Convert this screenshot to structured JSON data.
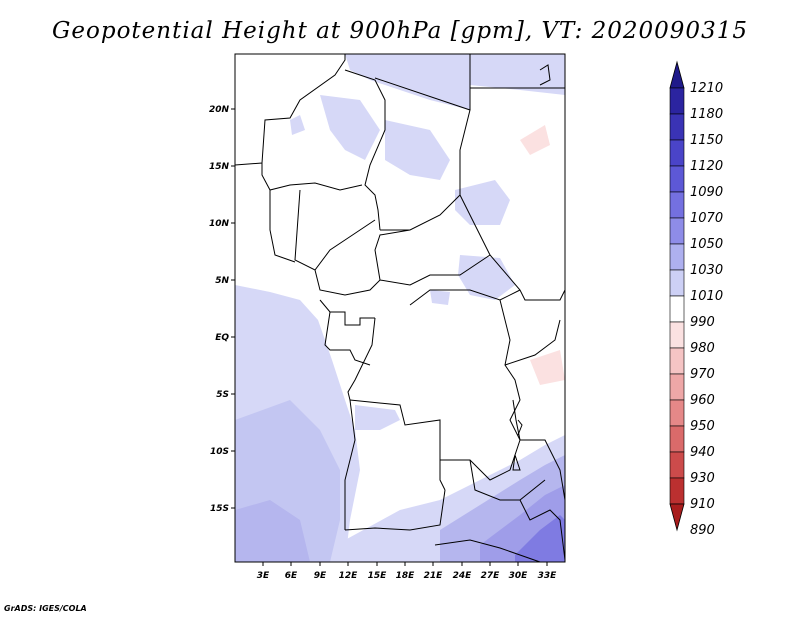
{
  "title": "Geopotential Height at 900hPa [gpm], VT: 2020090315",
  "credit": "GrADS: IGES/COLA",
  "map": {
    "lat_ticks": [
      "20N",
      "15N",
      "10N",
      "5N",
      "EQ",
      "5S",
      "10S",
      "15S"
    ],
    "lon_ticks": [
      "3E",
      "6E",
      "9E",
      "12E",
      "15E",
      "18E",
      "21E",
      "24E",
      "27E",
      "30E",
      "33E"
    ]
  },
  "colorbar": {
    "levels": [
      "1210",
      "1180",
      "1150",
      "1120",
      "1090",
      "1070",
      "1050",
      "1030",
      "1010",
      "990",
      "980",
      "970",
      "960",
      "950",
      "940",
      "930",
      "910",
      "890"
    ],
    "colors": [
      "#1f1a8a",
      "#2b24a0",
      "#3a33b5",
      "#4a44c8",
      "#5d58d6",
      "#7470e0",
      "#8e8ce8",
      "#aeb0ef",
      "#cdd0f5",
      "#ffffff",
      "#fbe1e1",
      "#f5c4c4",
      "#eea7a7",
      "#e58888",
      "#da6a6a",
      "#cc4b4b",
      "#bb3030",
      "#a81d1d"
    ]
  }
}
